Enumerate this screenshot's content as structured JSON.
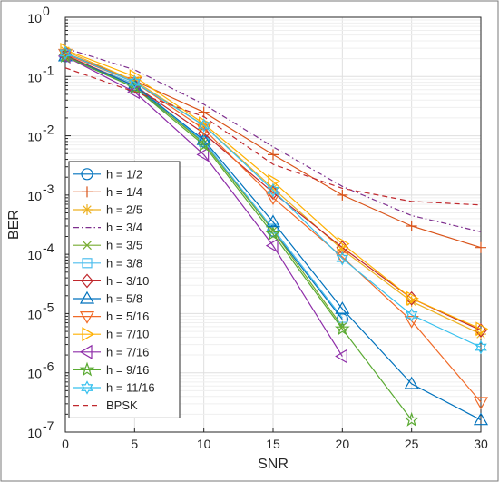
{
  "chart_data": {
    "type": "line",
    "xlabel": "SNR",
    "ylabel": "BER",
    "xlim": [
      0,
      30
    ],
    "ylim": [
      1e-07,
      1
    ],
    "yscale": "log",
    "grid": true,
    "legend_position": "bottom-left",
    "x_ticks": [
      "0",
      "5",
      "10",
      "15",
      "20",
      "25",
      "30"
    ],
    "y_ticks": [
      {
        "base": "10",
        "exp": "0"
      },
      {
        "base": "10",
        "exp": "-1"
      },
      {
        "base": "10",
        "exp": "-2"
      },
      {
        "base": "10",
        "exp": "-3"
      },
      {
        "base": "10",
        "exp": "-4"
      },
      {
        "base": "10",
        "exp": "-5"
      },
      {
        "base": "10",
        "exp": "-6"
      },
      {
        "base": "10",
        "exp": "-7"
      }
    ],
    "series": [
      {
        "name": "h = 1/2",
        "color": "#0072BD",
        "marker": "circle",
        "dash": "solid",
        "points": [
          [
            0,
            0.22
          ],
          [
            5,
            0.065
          ],
          [
            10,
            0.008
          ],
          [
            15,
            0.00025
          ],
          [
            20,
            8e-06
          ]
        ]
      },
      {
        "name": "h = 1/4",
        "color": "#D95319",
        "marker": "plus",
        "dash": "solid",
        "points": [
          [
            0,
            0.25
          ],
          [
            5,
            0.085
          ],
          [
            10,
            0.025
          ],
          [
            15,
            0.0048
          ],
          [
            20,
            0.001
          ],
          [
            25,
            0.0003
          ],
          [
            30,
            0.00013
          ]
        ]
      },
      {
        "name": "h = 2/5",
        "color": "#EDB120",
        "marker": "asterisk",
        "dash": "solid",
        "points": [
          [
            0,
            0.27
          ],
          [
            5,
            0.085
          ],
          [
            10,
            0.015
          ],
          [
            15,
            0.0013
          ],
          [
            20,
            0.00012
          ],
          [
            25,
            1.6e-05
          ],
          [
            30,
            4.5e-06
          ]
        ]
      },
      {
        "name": "h = 3/4",
        "color": "#7E2F8E",
        "marker": "none",
        "dash": "dashdot",
        "points": [
          [
            0,
            0.3
          ],
          [
            5,
            0.13
          ],
          [
            10,
            0.034
          ],
          [
            15,
            0.0065
          ],
          [
            20,
            0.0014
          ],
          [
            25,
            0.00045
          ],
          [
            30,
            0.00024
          ]
        ]
      },
      {
        "name": "h = 3/5",
        "color": "#77AC30",
        "marker": "x",
        "dash": "solid",
        "points": [
          [
            0,
            0.22
          ],
          [
            5,
            0.07
          ],
          [
            10,
            0.0075
          ],
          [
            15,
            0.00025
          ],
          [
            20,
            6e-06
          ]
        ]
      },
      {
        "name": "h = 3/8",
        "color": "#4DBEEE",
        "marker": "square",
        "dash": "solid",
        "points": [
          [
            0,
            0.22
          ],
          [
            5,
            0.075
          ],
          [
            10,
            0.008
          ],
          [
            15,
            0.00027
          ],
          [
            20,
            8.5e-06
          ]
        ]
      },
      {
        "name": "h = 3/10",
        "color": "#C0282D",
        "marker": "diamond",
        "dash": "solid",
        "points": [
          [
            0,
            0.23
          ],
          [
            5,
            0.07
          ],
          [
            10,
            0.011
          ],
          [
            15,
            0.0011
          ],
          [
            20,
            0.00013
          ],
          [
            25,
            1.8e-05
          ],
          [
            30,
            5.2e-06
          ]
        ]
      },
      {
        "name": "h = 5/8",
        "color": "#0072BD",
        "marker": "triangle-up",
        "dash": "solid",
        "points": [
          [
            0,
            0.22
          ],
          [
            5,
            0.07
          ],
          [
            10,
            0.0085
          ],
          [
            15,
            0.00035
          ],
          [
            20,
            1.2e-05
          ],
          [
            25,
            6.5e-07
          ],
          [
            30,
            1.6e-07
          ]
        ]
      },
      {
        "name": "h = 5/16",
        "color": "#F06A28",
        "marker": "triangle-down",
        "dash": "solid",
        "points": [
          [
            0,
            0.24
          ],
          [
            5,
            0.08
          ],
          [
            10,
            0.013
          ],
          [
            15,
            0.0009
          ],
          [
            20,
            9e-05
          ],
          [
            25,
            7.5e-06
          ],
          [
            30,
            3.2e-07
          ]
        ]
      },
      {
        "name": "h = 7/10",
        "color": "#FFB000",
        "marker": "triangle-right",
        "dash": "solid",
        "points": [
          [
            0,
            0.28
          ],
          [
            5,
            0.1
          ],
          [
            10,
            0.016
          ],
          [
            15,
            0.0017
          ],
          [
            20,
            0.00015
          ],
          [
            25,
            1.8e-05
          ],
          [
            30,
            5.5e-06
          ]
        ]
      },
      {
        "name": "h = 7/16",
        "color": "#8E2DA8",
        "marker": "triangle-left",
        "dash": "solid",
        "points": [
          [
            0,
            0.22
          ],
          [
            5,
            0.055
          ],
          [
            10,
            0.0048
          ],
          [
            15,
            0.00014
          ],
          [
            20,
            1.9e-06
          ]
        ]
      },
      {
        "name": "h = 9/16",
        "color": "#5AAA32",
        "marker": "pentagram",
        "dash": "solid",
        "points": [
          [
            0,
            0.22
          ],
          [
            5,
            0.065
          ],
          [
            10,
            0.007
          ],
          [
            15,
            0.00022
          ],
          [
            20,
            5.5e-06
          ],
          [
            25,
            1.6e-07
          ]
        ]
      },
      {
        "name": "h = 11/16",
        "color": "#36C0EE",
        "marker": "hexagram",
        "dash": "solid",
        "points": [
          [
            0,
            0.25
          ],
          [
            5,
            0.08
          ],
          [
            10,
            0.015
          ],
          [
            15,
            0.0012
          ],
          [
            20,
            8.5e-05
          ],
          [
            25,
            9.5e-06
          ],
          [
            30,
            2.7e-06
          ]
        ]
      },
      {
        "name": "BPSK",
        "color": "#C0282D",
        "marker": "none",
        "dash": "dashed",
        "points": [
          [
            0,
            0.14
          ],
          [
            5,
            0.055
          ],
          [
            10,
            0.021
          ],
          [
            15,
            0.0033
          ],
          [
            20,
            0.0013
          ],
          [
            25,
            0.00078
          ],
          [
            30,
            0.00068
          ]
        ]
      }
    ]
  }
}
